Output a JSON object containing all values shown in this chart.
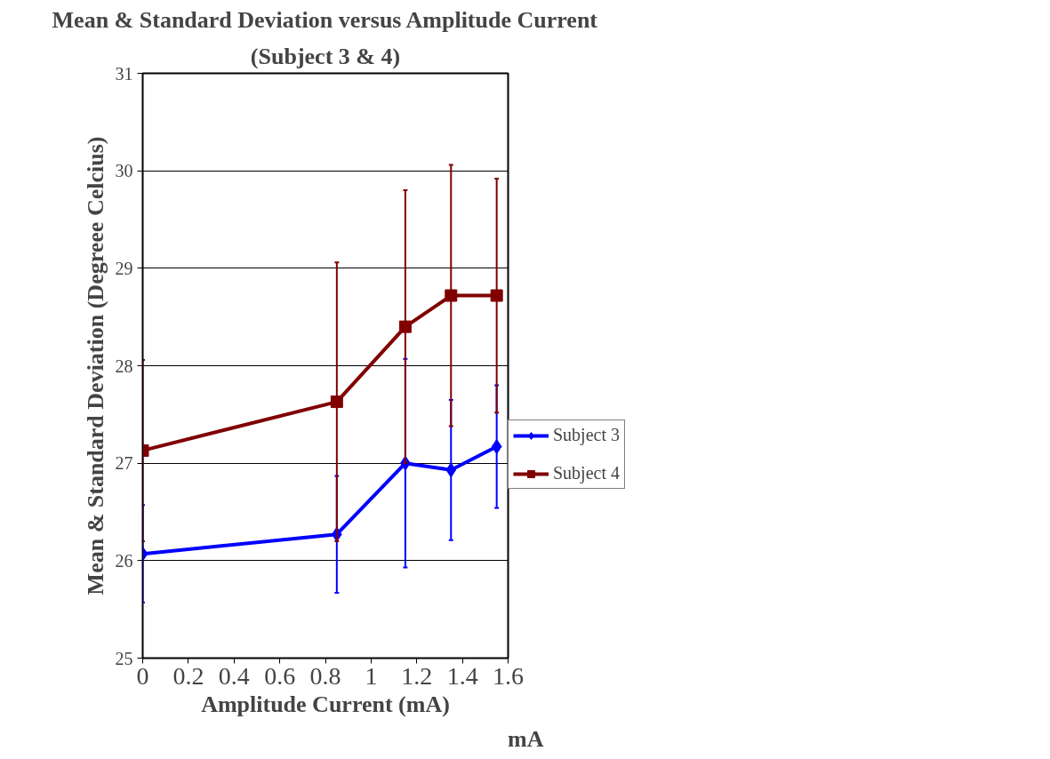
{
  "chart_data": {
    "type": "line",
    "title": "Mean & Standard Deviation versus Amplitude Current",
    "subtitle": "(Subject 3 & 4)",
    "xlabel": "Amplitude Current (mA)",
    "ylabel": "Mean & Standard Deviation (Degreee Celcius)",
    "annotations": [
      "mA"
    ],
    "x": [
      0,
      0.85,
      1.15,
      1.35,
      1.55
    ],
    "series": [
      {
        "name": "Subject 3",
        "color": "#0000ff",
        "marker": "diamond",
        "values": [
          26.07,
          26.27,
          27.0,
          26.93,
          27.17
        ],
        "errors": [
          0.5,
          0.6,
          1.07,
          0.72,
          0.63
        ]
      },
      {
        "name": "Subject 4",
        "color": "#800000",
        "marker": "square",
        "values": [
          27.13,
          27.63,
          28.4,
          28.72,
          28.72
        ],
        "errors": [
          0.93,
          1.43,
          1.4,
          1.34,
          1.2
        ]
      }
    ],
    "xlim": [
      0,
      1.6
    ],
    "xticks": [
      0,
      0.2,
      0.4,
      0.6,
      0.8,
      1,
      1.2,
      1.4,
      1.6
    ],
    "ylim": [
      25,
      31
    ],
    "yticks": [
      25,
      26,
      27,
      28,
      29,
      30,
      31
    ],
    "grid": "y",
    "legend": "right",
    "line_style": "solid"
  }
}
